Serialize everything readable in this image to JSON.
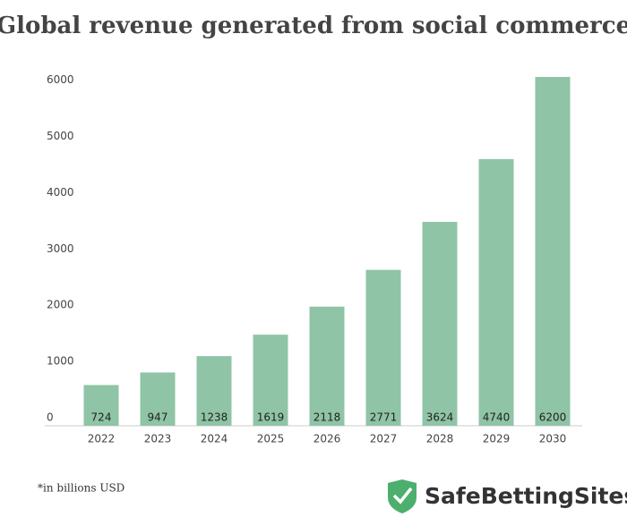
{
  "chart_data": {
    "type": "bar",
    "title": "Global revenue generated from social commerce",
    "categories": [
      "2022",
      "2023",
      "2024",
      "2025",
      "2026",
      "2027",
      "2028",
      "2029",
      "2030"
    ],
    "values": [
      724,
      947,
      1238,
      1619,
      2118,
      2771,
      3624,
      4740,
      6200
    ],
    "color": "#8fc4a6",
    "ylim": [
      0,
      6200
    ],
    "yticks": [
      0,
      1000,
      2000,
      3000,
      4000,
      5000,
      6000
    ],
    "grid": false,
    "footnote": "*in billions USD",
    "logo": "SafeBettingSites"
  }
}
